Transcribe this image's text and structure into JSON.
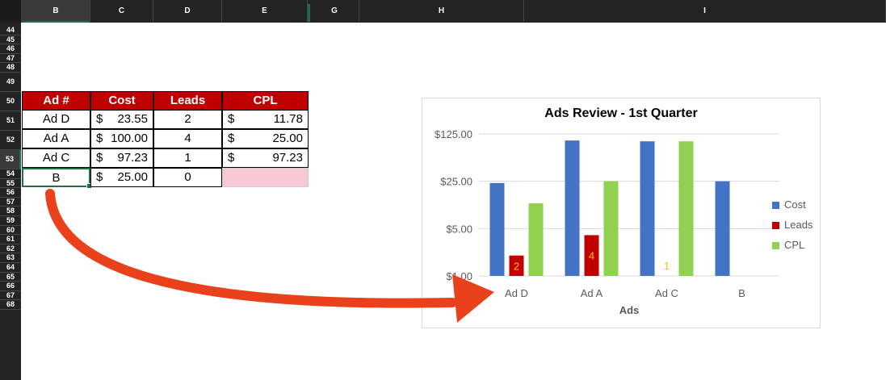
{
  "columns": [
    "B",
    "C",
    "D",
    "E",
    "G",
    "H",
    "I"
  ],
  "rows": [
    "44",
    "45",
    "46",
    "47",
    "48",
    "49",
    "50",
    "51",
    "52",
    "53",
    "54",
    "55",
    "56",
    "57",
    "58",
    "59",
    "60",
    "61",
    "62",
    "63",
    "64",
    "65",
    "66",
    "67",
    "68"
  ],
  "table": {
    "headers": [
      "Ad #",
      "Cost",
      "Leads",
      "CPL"
    ],
    "rows": [
      {
        "ad": "Ad D",
        "cost_cur": "$",
        "cost": "23.55",
        "leads": "2",
        "cpl_cur": "$",
        "cpl": "11.78"
      },
      {
        "ad": "Ad A",
        "cost_cur": "$",
        "cost": "100.00",
        "leads": "4",
        "cpl_cur": "$",
        "cpl": "25.00"
      },
      {
        "ad": "Ad C",
        "cost_cur": "$",
        "cost": "97.23",
        "leads": "1",
        "cpl_cur": "$",
        "cpl": "97.23"
      },
      {
        "ad": "B",
        "cost_cur": "$",
        "cost": "25.00",
        "leads": "0",
        "cpl_cur": "",
        "cpl": ""
      }
    ]
  },
  "chart_data": {
    "type": "bar",
    "title": "Ads Review - 1st Quarter",
    "xlabel": "Ads",
    "ylabel": "",
    "scale": "log5",
    "ylim": [
      1,
      125
    ],
    "yticks": [
      "$1.00",
      "$5.00",
      "$25.00",
      "$125.00"
    ],
    "categories": [
      "Ad D",
      "Ad A",
      "Ad C",
      "B"
    ],
    "series": [
      {
        "name": "Cost",
        "color": "#4472c4",
        "values": [
          23.55,
          100.0,
          97.23,
          25.0
        ]
      },
      {
        "name": "Leads",
        "color": "#c00000",
        "values": [
          2,
          4,
          1,
          0
        ],
        "labels": [
          "2",
          "4",
          "1",
          ""
        ]
      },
      {
        "name": "CPL",
        "color": "#92d050",
        "values": [
          11.78,
          25.0,
          97.23,
          null
        ]
      }
    ],
    "grid": true,
    "legend": "right"
  },
  "annotation": {
    "arrow_color": "#e8411c"
  }
}
